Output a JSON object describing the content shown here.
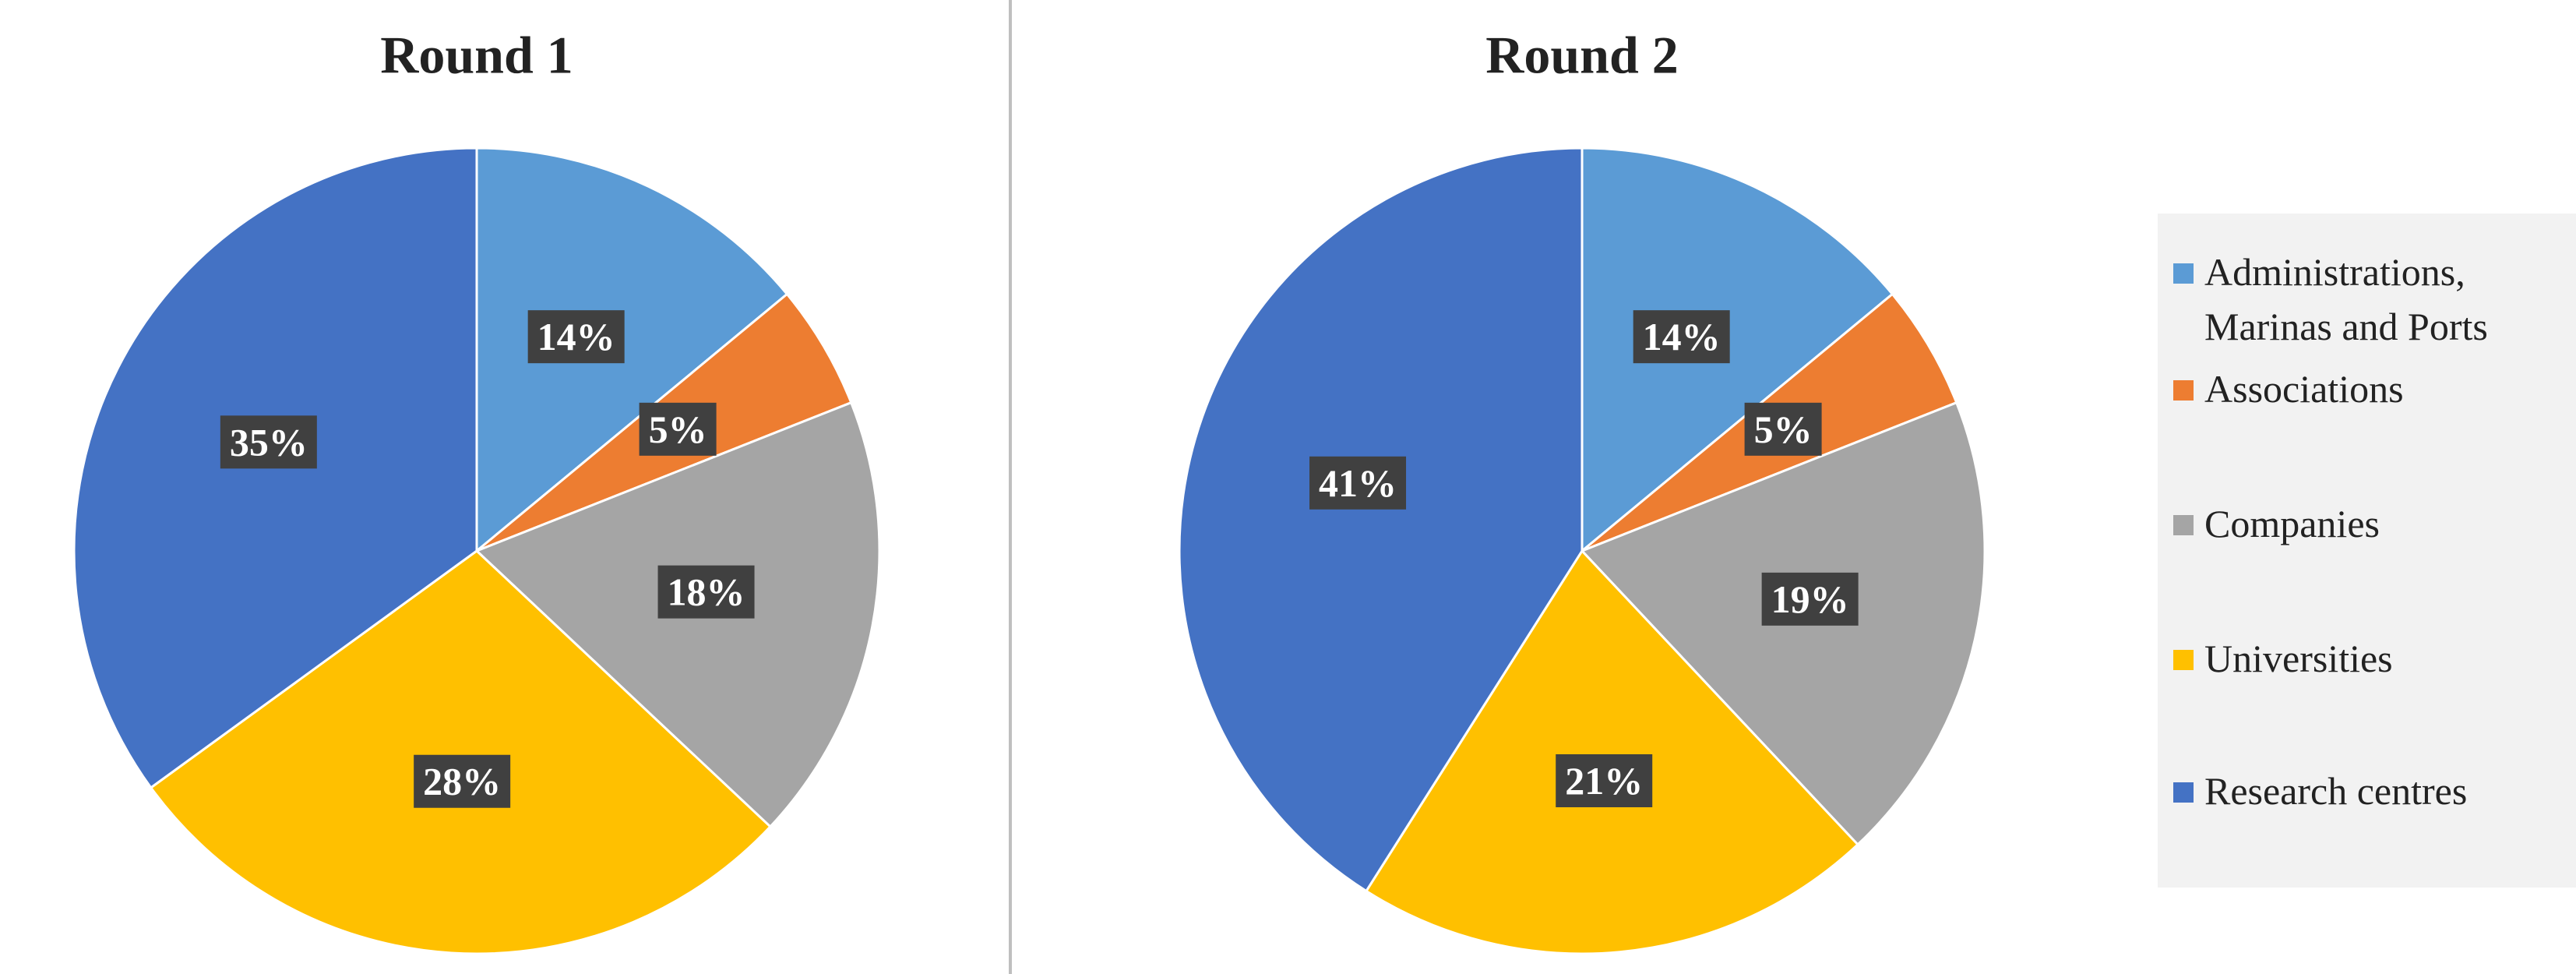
{
  "chart_data": [
    {
      "type": "pie",
      "title": "Round 1",
      "values": [
        14,
        5,
        18,
        28,
        35
      ],
      "value_labels": [
        "14%",
        "5%",
        "18%",
        "28%",
        "35%"
      ]
    },
    {
      "type": "pie",
      "title": "Round 2",
      "values": [
        14,
        5,
        19,
        21,
        41
      ],
      "value_labels": [
        "14%",
        "5%",
        "19%",
        "21%",
        "41%"
      ]
    }
  ],
  "legend": {
    "labels": [
      "Administrations, Marinas and Ports",
      "Associations",
      "Companies",
      "Universities",
      "Research centres"
    ],
    "colors": [
      "#5b9bd5",
      "#ed7d31",
      "#a5a5a5",
      "#ffc000",
      "#4472c4"
    ]
  }
}
